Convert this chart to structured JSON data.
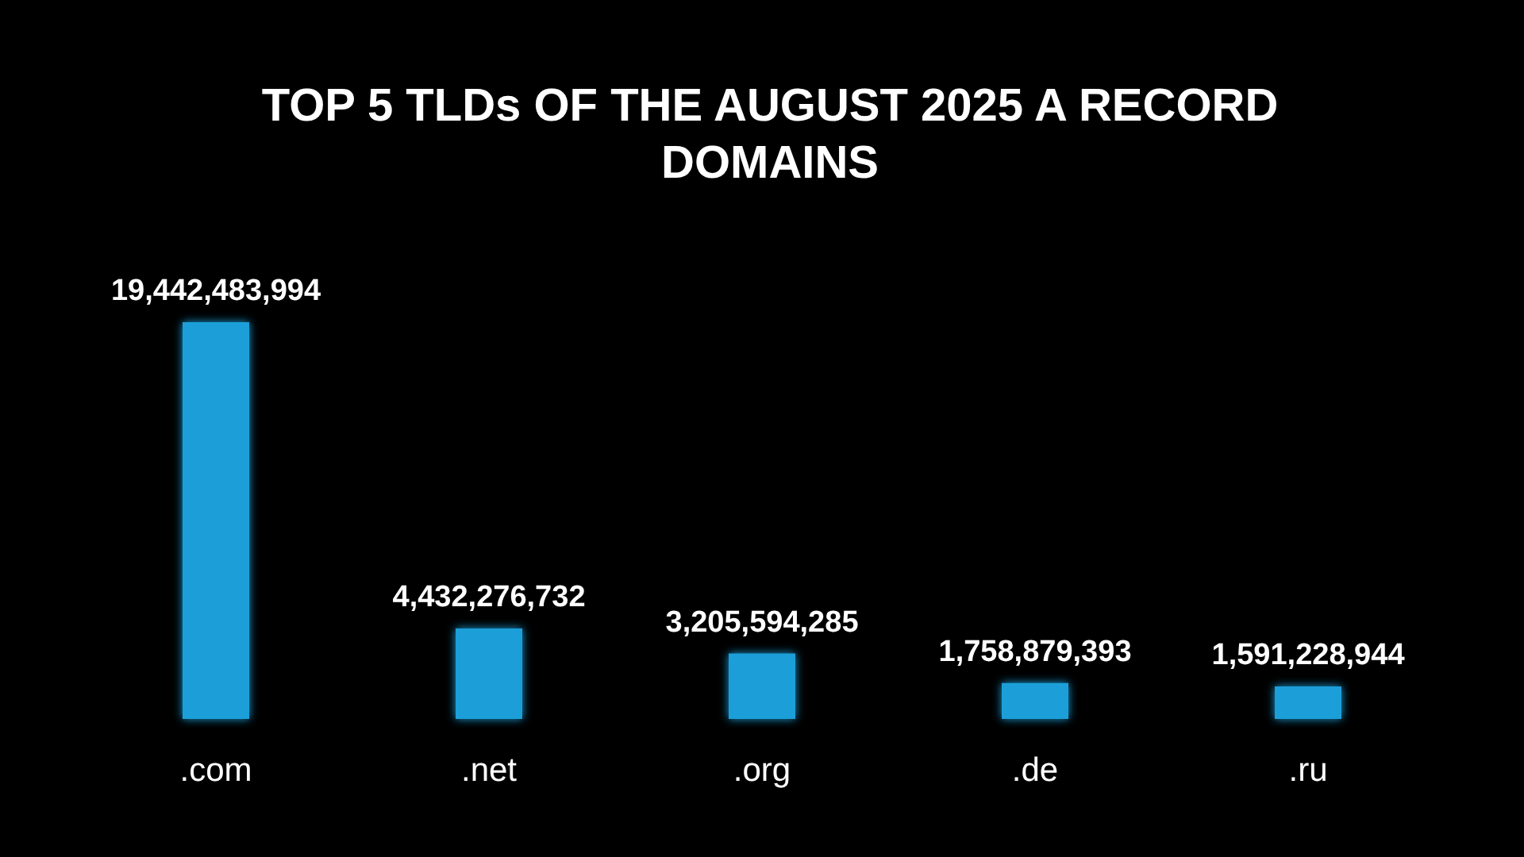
{
  "chart_data": {
    "type": "bar",
    "title": "TOP 5 TLDs OF THE AUGUST 2025 A RECORD\nDOMAINS",
    "categories": [
      ".com",
      ".net",
      ".org",
      ".de",
      ".ru"
    ],
    "values": [
      19442483994,
      4432276732,
      3205594285,
      1758879393,
      1591228944
    ],
    "value_labels": [
      "19,442,483,994",
      "4,432,276,732",
      "3,205,594,285",
      "1,758,879,393",
      "1,591,228,944"
    ],
    "color": "#1a9fd9"
  }
}
